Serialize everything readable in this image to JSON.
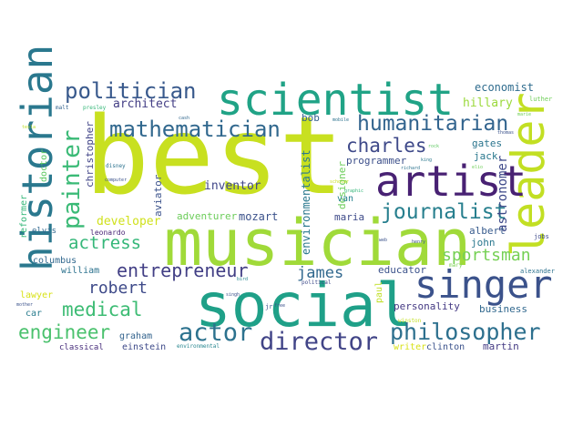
{
  "words": [
    {
      "text": "best",
      "color": "#c8e020"
    },
    {
      "text": "musician",
      "color": "#a0da39"
    },
    {
      "text": "social",
      "color": "#1fa088"
    },
    {
      "text": "scientist",
      "color": "#20a386"
    },
    {
      "text": "historian",
      "color": "#2a788e"
    },
    {
      "text": "leader",
      "color": "#c2df23"
    },
    {
      "text": "artist",
      "color": "#482173"
    },
    {
      "text": "singer",
      "color": "#3b528b"
    },
    {
      "text": "philosopher",
      "color": "#2d708e"
    },
    {
      "text": "director",
      "color": "#414487"
    },
    {
      "text": "actor",
      "color": "#2c728e"
    },
    {
      "text": "mathematician",
      "color": "#31688e"
    },
    {
      "text": "politician",
      "color": "#38598c"
    },
    {
      "text": "humanitarian",
      "color": "#32648e"
    },
    {
      "text": "journalist",
      "color": "#277f8e"
    },
    {
      "text": "painter",
      "color": "#3aba76"
    },
    {
      "text": "charles",
      "color": "#3e4989"
    },
    {
      "text": "entrepreneur",
      "color": "#423f85"
    },
    {
      "text": "medical",
      "color": "#3dbc74"
    },
    {
      "text": "engineer",
      "color": "#4ac16d"
    },
    {
      "text": "sportsman",
      "color": "#75d054"
    },
    {
      "text": "actress",
      "color": "#35b779"
    },
    {
      "text": "robert",
      "color": "#3e4a89"
    },
    {
      "text": "james",
      "color": "#31688e"
    },
    {
      "text": "astronomer",
      "color": "#3e4989"
    },
    {
      "text": "architect",
      "color": "#433e85"
    },
    {
      "text": "economist",
      "color": "#2f6c8e"
    },
    {
      "text": "hillary",
      "color": "#9bd93c"
    },
    {
      "text": "inventor",
      "color": "#404688"
    },
    {
      "text": "developer",
      "color": "#d0e11c"
    },
    {
      "text": "adventurer",
      "color": "#6ccd5a"
    },
    {
      "text": "mozart",
      "color": "#3b528b"
    },
    {
      "text": "maria",
      "color": "#3e4a89"
    },
    {
      "text": "programmer",
      "color": "#3c4f8a"
    },
    {
      "text": "gates",
      "color": "#2b758e"
    },
    {
      "text": "jack",
      "color": "#2a788e"
    },
    {
      "text": "bob",
      "color": "#35608d"
    },
    {
      "text": "albert",
      "color": "#375b8d"
    },
    {
      "text": "john",
      "color": "#2a788e"
    },
    {
      "text": "educator",
      "color": "#3b528b"
    },
    {
      "text": "personality",
      "color": "#443983"
    },
    {
      "text": "business",
      "color": "#31688e"
    },
    {
      "text": "martin",
      "color": "#443a83"
    },
    {
      "text": "writer",
      "color": "#d8e219"
    },
    {
      "text": "clinton",
      "color": "#3b528b"
    },
    {
      "text": "paul",
      "color": "#c0df25"
    },
    {
      "text": "graham",
      "color": "#33638d"
    },
    {
      "text": "einstein",
      "color": "#3e4a89"
    },
    {
      "text": "classical",
      "color": "#472d7b"
    },
    {
      "text": "car",
      "color": "#287c8e"
    },
    {
      "text": "lawyer",
      "color": "#d8e219"
    },
    {
      "text": "william",
      "color": "#2c728e"
    },
    {
      "text": "columbus",
      "color": "#31688e"
    },
    {
      "text": "elvis",
      "color": "#31688e"
    },
    {
      "text": "leonardo",
      "color": "#482576"
    },
    {
      "text": "christopher",
      "color": "#414487"
    },
    {
      "text": "aviator",
      "color": "#3b528b"
    },
    {
      "text": "designer",
      "color": "#6ccd5a"
    },
    {
      "text": "environmentalist",
      "color": "#2a788e"
    },
    {
      "text": "van",
      "color": "#26828e"
    },
    {
      "text": "reformer",
      "color": "#35b779"
    },
    {
      "text": "doctor",
      "color": "#5ec962"
    },
    {
      "text": "luther",
      "color": "#6ece58"
    },
    {
      "text": "jobs",
      "color": "#3e4a89"
    },
    {
      "text": "alexander",
      "color": "#2c728e"
    },
    {
      "text": "mary",
      "color": "#7ad151"
    },
    {
      "text": "political",
      "color": "#3e4a89"
    },
    {
      "text": "environmental",
      "color": "#25858e"
    },
    {
      "text": "disney",
      "color": "#2c728e"
    },
    {
      "text": "computer",
      "color": "#3b528b"
    },
    {
      "text": "malt",
      "color": "#33638d"
    },
    {
      "text": "presley",
      "color": "#35b779"
    },
    {
      "text": "cash",
      "color": "#31688e"
    },
    {
      "text": "mobile",
      "color": "#2c728e"
    },
    {
      "text": "richard",
      "color": "#2c728e"
    },
    {
      "text": "king",
      "color": "#2a788e"
    },
    {
      "text": "elio",
      "color": "#6ece58"
    },
    {
      "text": "web",
      "color": "#3b528b"
    },
    {
      "text": "winston",
      "color": "#c2df23"
    },
    {
      "text": "jr",
      "color": "#3b528b"
    },
    {
      "text": "free",
      "color": "#3b528b"
    },
    {
      "text": "bird",
      "color": "#25858e"
    },
    {
      "text": "mother",
      "color": "#3b528b"
    },
    {
      "text": "rock",
      "color": "#5ec962"
    },
    {
      "text": "graphic",
      "color": "#35b779"
    },
    {
      "text": "tesla",
      "color": "#bddf26"
    },
    {
      "text": "henry",
      "color": "#3b528b"
    },
    {
      "text": "singh",
      "color": "#3b528b"
    },
    {
      "text": "marie",
      "color": "#6ece58"
    },
    {
      "text": "scholar",
      "color": "#c8e020"
    },
    {
      "text": "thomas",
      "color": "#3b528b"
    }
  ]
}
